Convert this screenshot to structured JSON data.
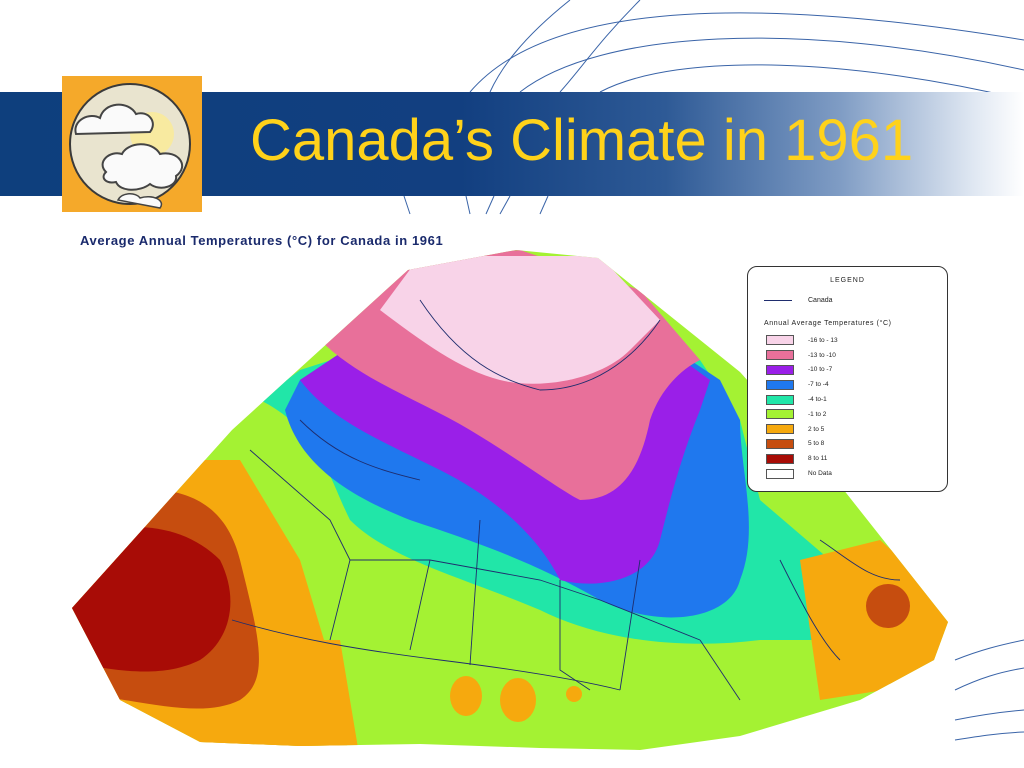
{
  "slide": {
    "title": "Canada’s Climate in 1961",
    "logo_icon": "sun-and-clouds-icon"
  },
  "map": {
    "title": "Average Annual Temperatures (°C) for Canada in 1961",
    "subject": "Canada",
    "legend": {
      "title": "LEGEND",
      "canada_label": "Canada",
      "subtitle": "Annual Average Temperatures (°C)",
      "items": [
        {
          "label": "-16 to - 13",
          "color": "#f8d3e8"
        },
        {
          "label": "-13 to -10",
          "color": "#e8709a"
        },
        {
          "label": "-10 to -7",
          "color": "#9a1fe8"
        },
        {
          "label": "-7 to -4",
          "color": "#1f78ee"
        },
        {
          "label": "-4 to-1",
          "color": "#21e6a8"
        },
        {
          "label": "-1 to 2",
          "color": "#a4f233"
        },
        {
          "label": "2 to 5",
          "color": "#f6a90e"
        },
        {
          "label": "5 to 8",
          "color": "#c64d0f"
        },
        {
          "label": "8 to 11",
          "color": "#a80c06"
        },
        {
          "label": "No Data",
          "color": "#ffffff"
        }
      ]
    }
  }
}
